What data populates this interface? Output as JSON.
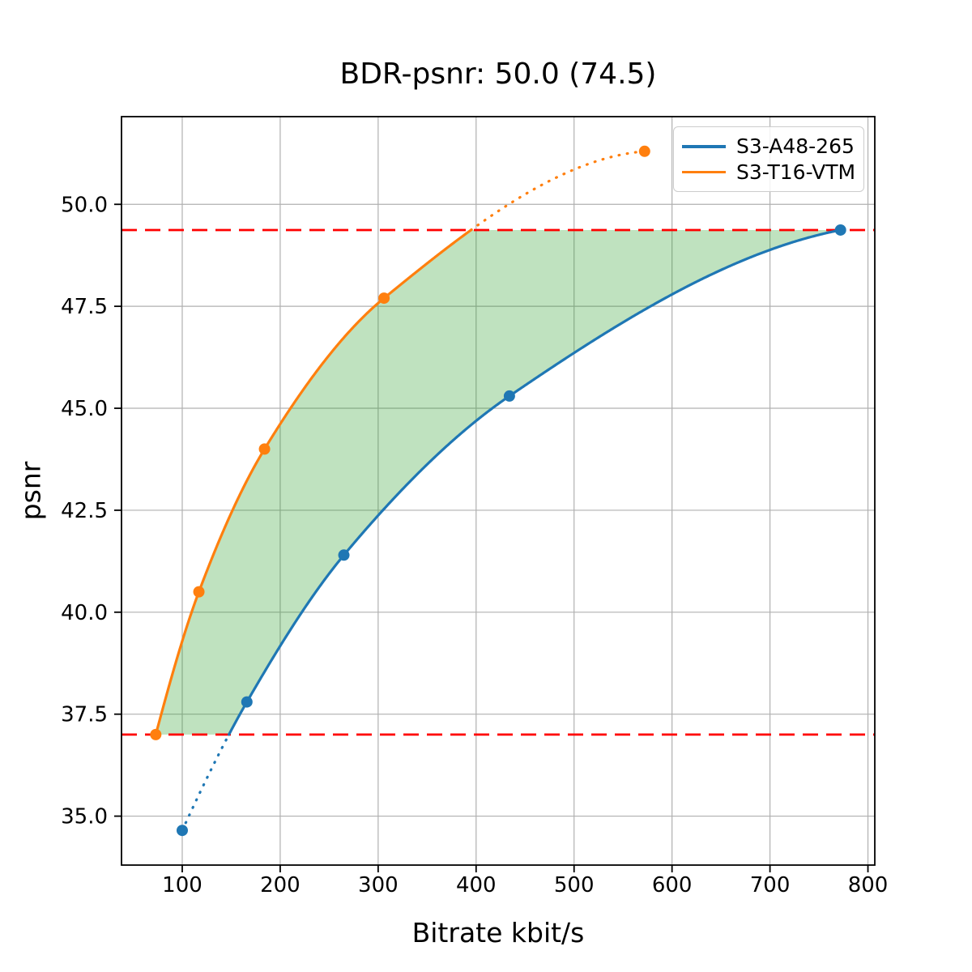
{
  "figure": {
    "background": "#ffffff"
  },
  "chart_data": {
    "type": "line",
    "title": "BDR-psnr: 50.0 (74.5)",
    "xlabel": "Bitrate kbit/s",
    "ylabel": "psnr",
    "xlim": [
      38,
      807
    ],
    "ylim": [
      33.8,
      52.15
    ],
    "xticks": [
      100,
      200,
      300,
      400,
      500,
      600,
      700,
      800
    ],
    "xtick_labels": [
      "100",
      "200",
      "300",
      "400",
      "500",
      "600",
      "700",
      "800"
    ],
    "yticks": [
      35.0,
      37.5,
      40.0,
      42.5,
      45.0,
      47.5,
      50.0
    ],
    "ytick_labels": [
      "35.0",
      "37.5",
      "40.0",
      "42.5",
      "45.0",
      "47.5",
      "50.0"
    ],
    "grid": true,
    "grid_color": "#b0b0b0",
    "series": [
      {
        "name": "S3-A48-265",
        "color": "#1f77b4",
        "marker": "circle",
        "points": [
          [
            100,
            34.65
          ],
          [
            166,
            37.8
          ],
          [
            265,
            41.4
          ],
          [
            434,
            45.3
          ],
          [
            772,
            49.37
          ]
        ]
      },
      {
        "name": "S3-T16-VTM",
        "color": "#ff7f0e",
        "marker": "circle",
        "points": [
          [
            73,
            37.0
          ],
          [
            117,
            40.5
          ],
          [
            184,
            44.0
          ],
          [
            306,
            47.7
          ],
          [
            572,
            51.3
          ]
        ]
      }
    ],
    "bd_lines": {
      "low_psnr": 37.0,
      "high_psnr": 49.37,
      "color": "#ff0000",
      "style": "dashed"
    },
    "fill_between": {
      "color": "#2ca02c",
      "opacity": 0.3,
      "upper_series": 1,
      "lower_series": 0
    },
    "line_style_outside_bd_interval": "dotted",
    "legend_position": "upper right"
  }
}
